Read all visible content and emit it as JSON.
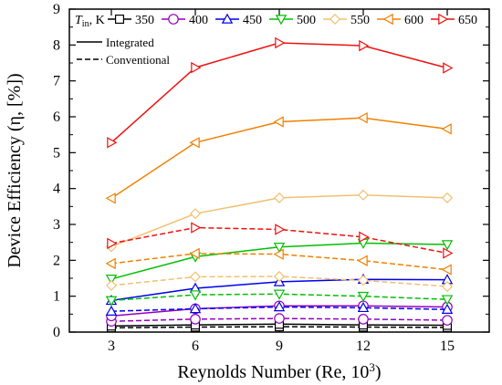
{
  "chart_data": {
    "type": "line",
    "x": [
      3,
      6,
      9,
      12,
      15
    ],
    "xlim": [
      1.5,
      16.5
    ],
    "ylim": [
      0,
      9
    ],
    "xticks": [
      "3",
      "6",
      "9",
      "12",
      "15"
    ],
    "yticks": [
      "0",
      "1",
      "2",
      "3",
      "4",
      "5",
      "6",
      "7",
      "8",
      "9"
    ],
    "xlabel_main": "Reynolds Number (Re, 10",
    "xlabel_sup": "3",
    "xlabel_close": ")",
    "ylabel": "Device Efficiency (η, [%])",
    "legend_prefix": "T",
    "legend_prefix_sub": "in",
    "legend_prefix_unit": ", K",
    "legend_placement": "top",
    "line_style_legend": [
      {
        "label": "Integrated",
        "dash": "solid"
      },
      {
        "label": "Conventional",
        "dash": "dashed"
      }
    ],
    "series": [
      {
        "name": "350",
        "color": "#000000",
        "marker": "square",
        "integrated": [
          0.17,
          0.2,
          0.22,
          0.2,
          0.19
        ],
        "conventional": [
          0.12,
          0.14,
          0.15,
          0.14,
          0.13
        ]
      },
      {
        "name": "400",
        "color": "#9400bf",
        "marker": "circle",
        "integrated": [
          0.45,
          0.65,
          0.73,
          0.73,
          0.7
        ],
        "conventional": [
          0.3,
          0.36,
          0.38,
          0.36,
          0.33
        ]
      },
      {
        "name": "450",
        "color": "#0000ee",
        "marker": "triangle-up",
        "integrated": [
          0.88,
          1.22,
          1.4,
          1.47,
          1.46
        ],
        "conventional": [
          0.58,
          0.65,
          0.7,
          0.68,
          0.63
        ]
      },
      {
        "name": "500",
        "color": "#00c000",
        "marker": "triangle-down",
        "integrated": [
          1.48,
          2.1,
          2.37,
          2.48,
          2.44
        ],
        "conventional": [
          0.88,
          1.04,
          1.06,
          1.0,
          0.91
        ]
      },
      {
        "name": "550",
        "color": "#f0c070",
        "marker": "diamond",
        "integrated": [
          2.38,
          3.3,
          3.74,
          3.82,
          3.74
        ],
        "conventional": [
          1.3,
          1.54,
          1.55,
          1.44,
          1.27
        ]
      },
      {
        "name": "600",
        "color": "#f08000",
        "marker": "triangle-left",
        "integrated": [
          3.73,
          5.28,
          5.86,
          5.97,
          5.66
        ],
        "conventional": [
          1.91,
          2.19,
          2.17,
          1.99,
          1.74
        ]
      },
      {
        "name": "650",
        "color": "#ee1111",
        "marker": "triangle-right",
        "integrated": [
          5.28,
          7.37,
          8.06,
          7.98,
          7.36
        ],
        "conventional": [
          2.47,
          2.91,
          2.86,
          2.65,
          2.2
        ]
      }
    ]
  }
}
